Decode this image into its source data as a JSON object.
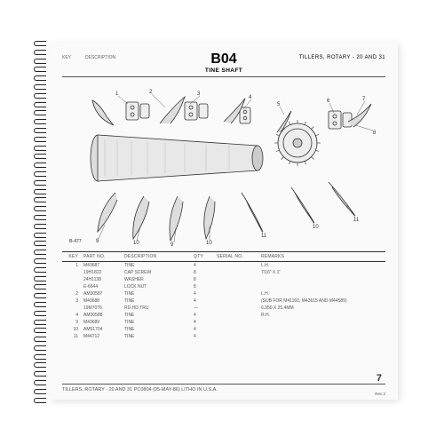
{
  "header": {
    "section_code": "B04",
    "category": "TILLERS, ROTARY - 20 AND 31",
    "subtitle": "TINE SHAFT",
    "key_label": "KEY",
    "desc_prefix": "DESCRIPTION"
  },
  "diagram": {
    "ref_label": "B-477"
  },
  "table": {
    "columns": [
      "KEY",
      "PART NO.",
      "DESCRIPTION",
      "QTY",
      "SERIAL NO.",
      "REMARKS"
    ],
    "rows": [
      [
        "1",
        "M43687",
        "TINE",
        "4",
        "",
        "L.H."
      ],
      [
        "",
        "19H1822",
        "CAP SCREW",
        "8",
        "",
        "7/16\" X 1\""
      ],
      [
        "",
        "24H1138",
        "WASHER",
        "8",
        "",
        ""
      ],
      [
        "",
        "E-6644",
        "LOCK NUT",
        "8",
        "",
        ""
      ],
      [
        "2",
        "AM30587",
        "TINE",
        "4",
        "",
        "L.H."
      ],
      [
        "3",
        "M43688",
        "TINE",
        "4",
        "",
        "(SUB FOR M41160, M43615 AND M44589)"
      ],
      [
        "",
        "19M7076",
        "RD.HD.TRU",
        "—",
        "",
        "6.350 X 25.4MM"
      ],
      [
        "4",
        "AM30588",
        "TINE",
        "4",
        "",
        "R.H."
      ],
      [
        "9",
        "M43689",
        "TINE",
        "4",
        "",
        ""
      ],
      [
        "10",
        "AM51704",
        "TINE",
        "4",
        "",
        ""
      ],
      [
        "11",
        "M44712",
        "TINE",
        "4",
        "",
        ""
      ]
    ]
  },
  "footer": {
    "left": "TILLERS, ROTARY - 20 AND 31   PC0804   (05-MAY-86)   LITHO IN U.S.A.",
    "page_number": "7",
    "rev": "Rev 2"
  }
}
